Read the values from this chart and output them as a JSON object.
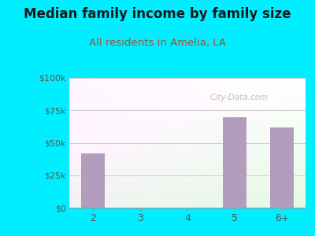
{
  "title": "Median family income by family size",
  "subtitle": "All residents in Amelia, LA",
  "categories": [
    "2",
    "3",
    "4",
    "5",
    "6+"
  ],
  "values": [
    42000,
    0,
    0,
    70000,
    62000
  ],
  "bar_color": "#b39dbd",
  "outer_bg": "#00eeff",
  "yticks": [
    0,
    25000,
    50000,
    75000,
    100000
  ],
  "ytick_labels": [
    "$0",
    "$25k",
    "$50k",
    "$75k",
    "$100k"
  ],
  "ylim": [
    0,
    100000
  ],
  "title_color": "#1a1a1a",
  "subtitle_color": "#a0522d",
  "watermark": "City-Data.com",
  "title_fontsize": 12,
  "subtitle_fontsize": 9.5,
  "tick_label_color": "#555555",
  "grid_color": "#cccccc",
  "gradient_top": "#f0f8f4",
  "gradient_bottom": "#e0f0e0"
}
